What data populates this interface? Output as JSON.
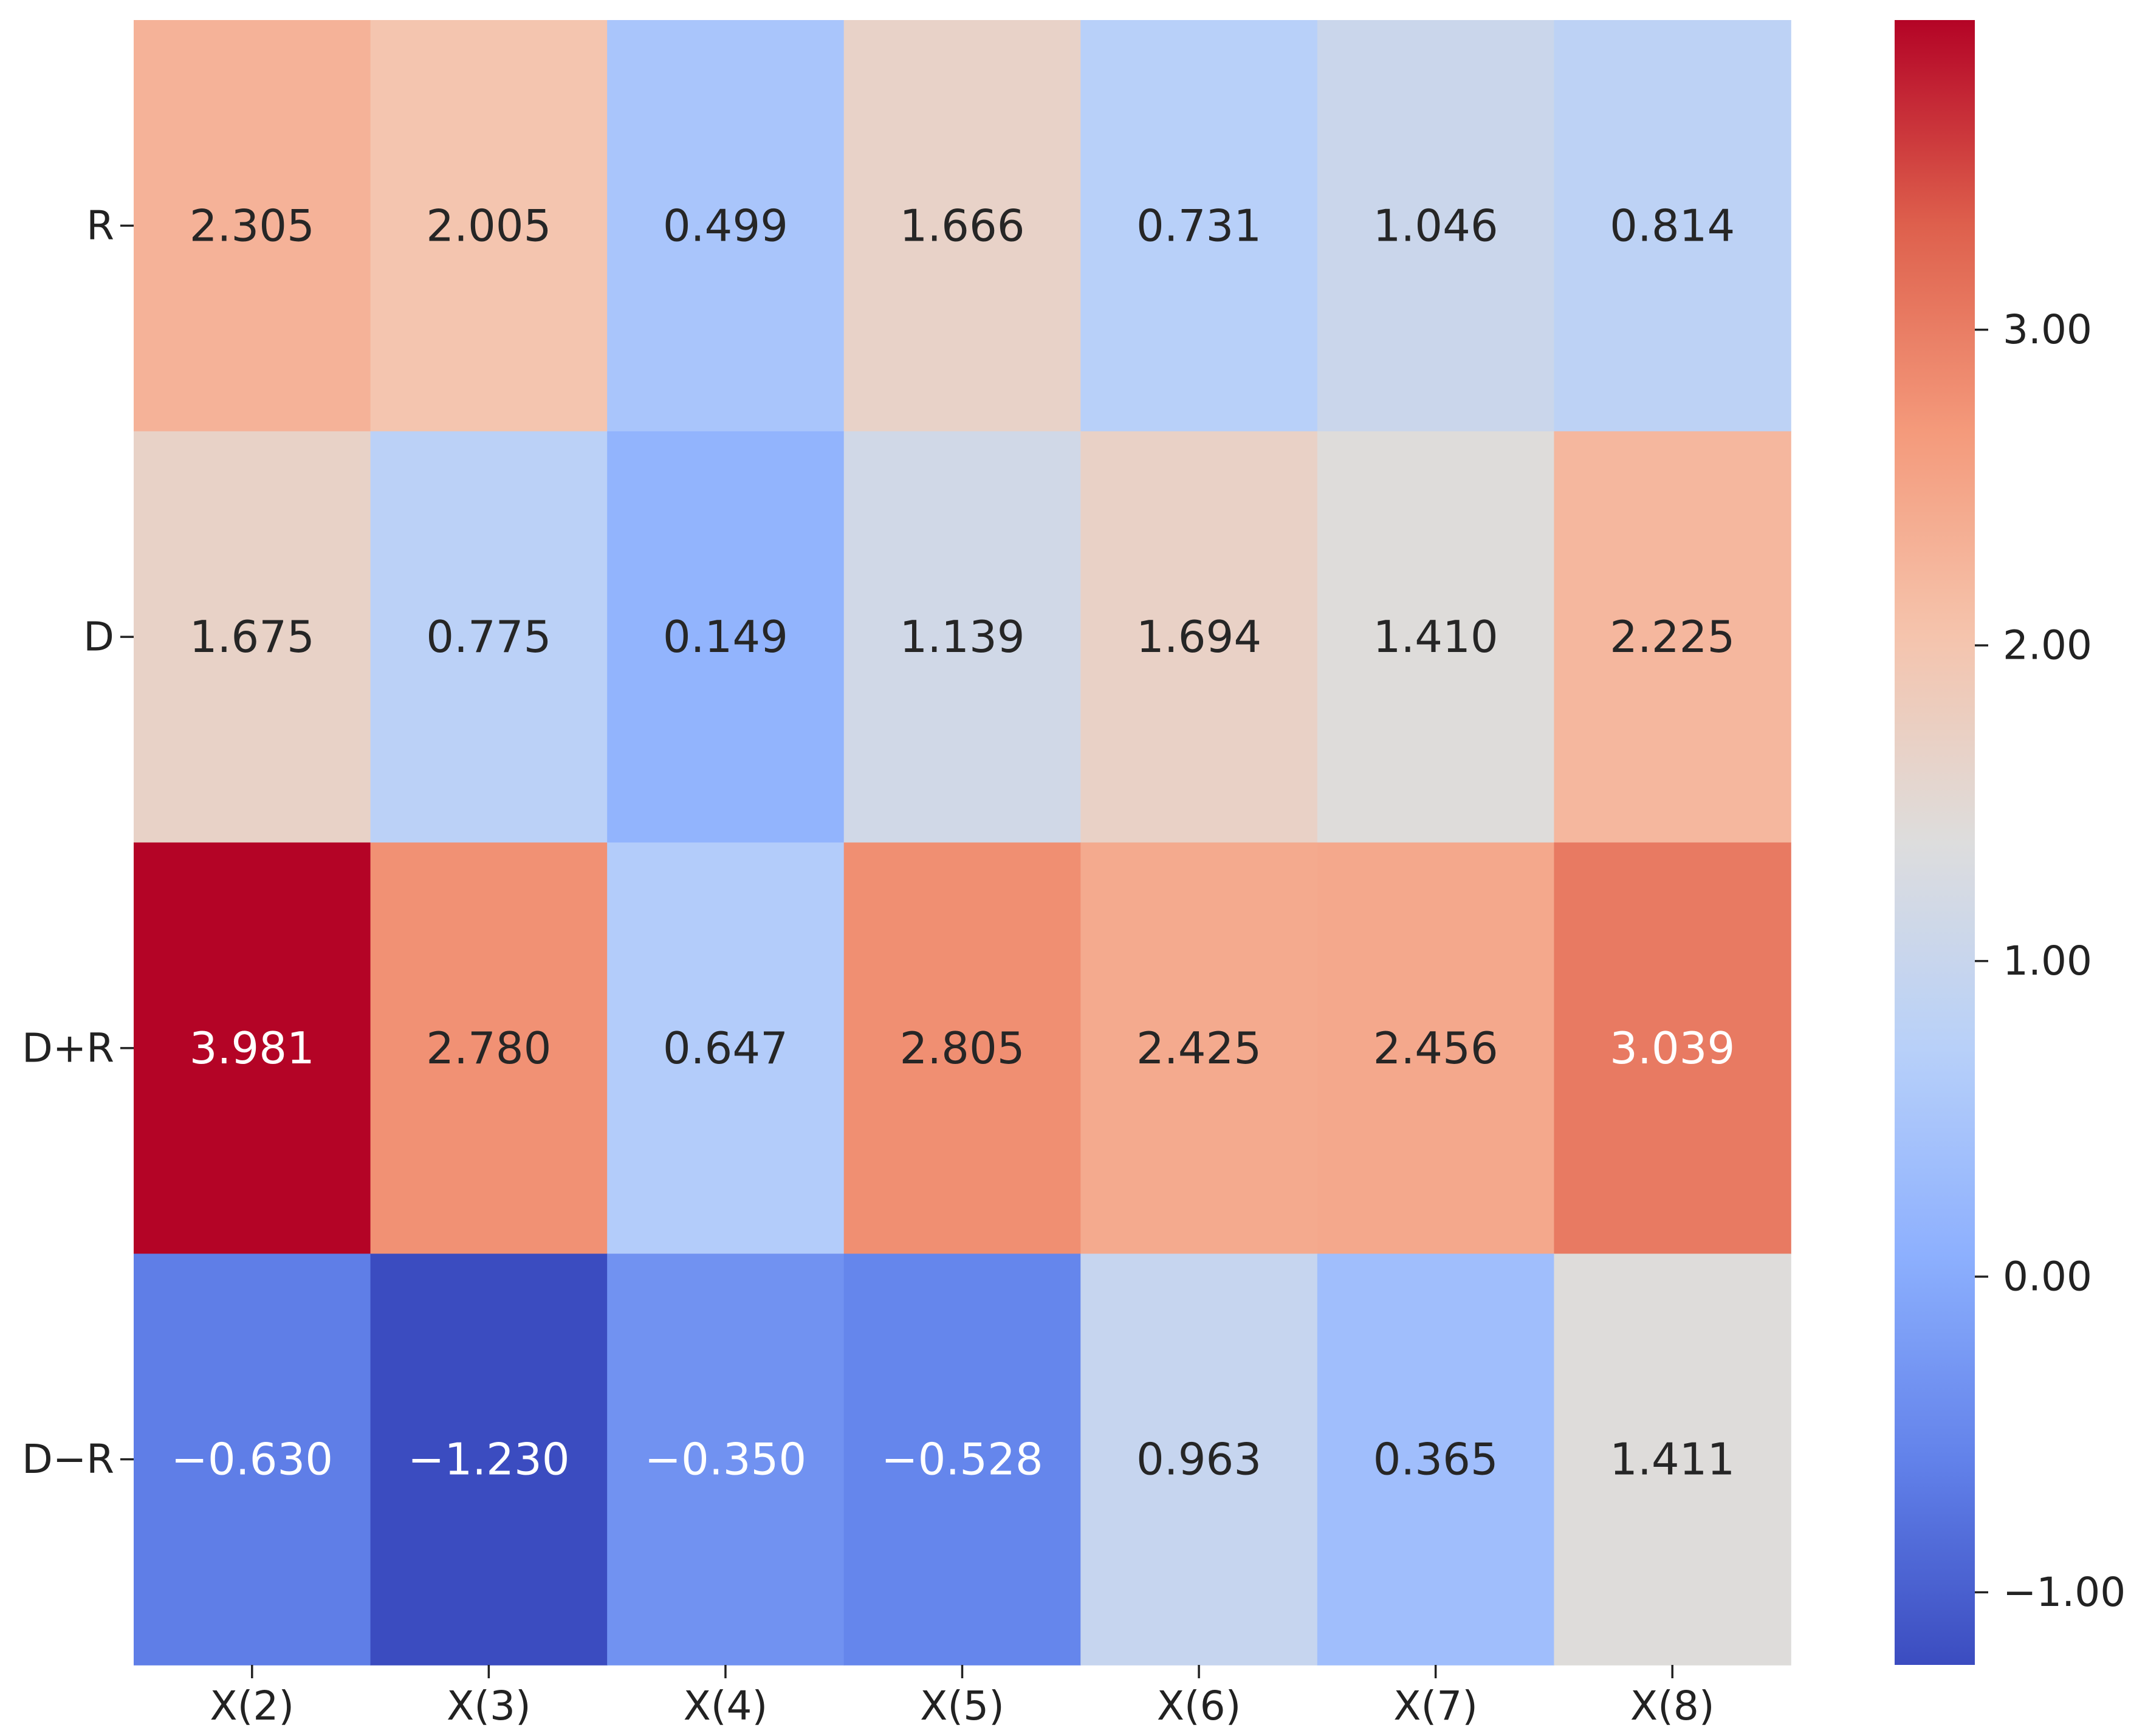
{
  "chart_data": {
    "type": "heatmap",
    "title": "",
    "xlabel": "",
    "ylabel": "",
    "x_categories": [
      "X(2)",
      "X(3)",
      "X(4)",
      "X(5)",
      "X(6)",
      "X(7)",
      "X(8)"
    ],
    "y_categories": [
      "R",
      "D",
      "D+R",
      "D−R"
    ],
    "values": [
      [
        2.305,
        2.005,
        0.499,
        1.666,
        0.731,
        1.046,
        0.814
      ],
      [
        1.675,
        0.775,
        0.149,
        1.139,
        1.694,
        1.41,
        2.225
      ],
      [
        3.981,
        2.78,
        0.647,
        2.805,
        2.425,
        2.456,
        3.039
      ],
      [
        -0.63,
        -1.23,
        -0.35,
        -0.528,
        0.963,
        0.365,
        1.411
      ]
    ],
    "cell_labels": [
      [
        "2.305",
        "2.005",
        "0.499",
        "1.666",
        "0.731",
        "1.046",
        "0.814"
      ],
      [
        "1.675",
        "0.775",
        "0.149",
        "1.139",
        "1.694",
        "1.410",
        "2.225"
      ],
      [
        "3.981",
        "2.780",
        "0.647",
        "2.805",
        "2.425",
        "2.456",
        "3.039"
      ],
      [
        "−0.630",
        "−1.230",
        "−0.350",
        "−0.528",
        "0.963",
        "0.365",
        "1.411"
      ]
    ],
    "colormap": "coolwarm",
    "vmin": -1.23,
    "vmax": 3.981,
    "colorbar": {
      "ticks": [
        -1,
        0,
        1,
        2,
        3
      ],
      "tick_labels": [
        "−1.00",
        "0.00",
        "1.00",
        "2.00",
        "3.00"
      ],
      "placement": "right"
    },
    "grid": false
  }
}
